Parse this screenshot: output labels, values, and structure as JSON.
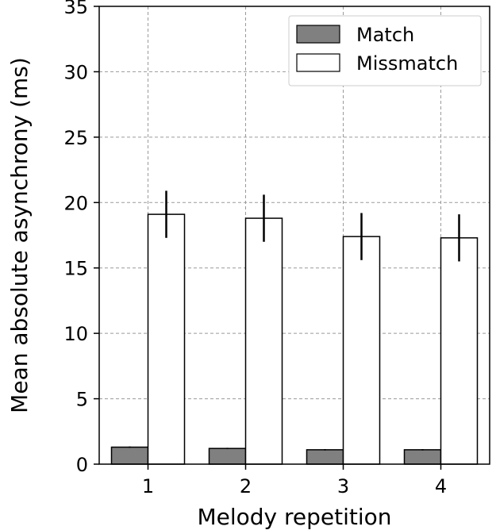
{
  "chart_data": {
    "type": "bar",
    "title": "",
    "xlabel": "Melody repetition",
    "ylabel": "Mean absolute asynchrony (ms)",
    "categories": [
      "1",
      "2",
      "3",
      "4"
    ],
    "ylim": [
      0,
      35
    ],
    "yticks": [
      0,
      5,
      10,
      15,
      20,
      25,
      30,
      35
    ],
    "grid": true,
    "legend_position": "top-right",
    "series": [
      {
        "name": "Match",
        "values": [
          1.3,
          1.2,
          1.1,
          1.1
        ],
        "errors": [
          0.05,
          0.05,
          0.05,
          0.05
        ],
        "color": "#808080"
      },
      {
        "name": "Missmatch",
        "values": [
          19.1,
          18.8,
          17.4,
          17.3
        ],
        "errors": [
          1.8,
          1.8,
          1.8,
          1.8
        ],
        "color": "#ffffff"
      }
    ]
  }
}
